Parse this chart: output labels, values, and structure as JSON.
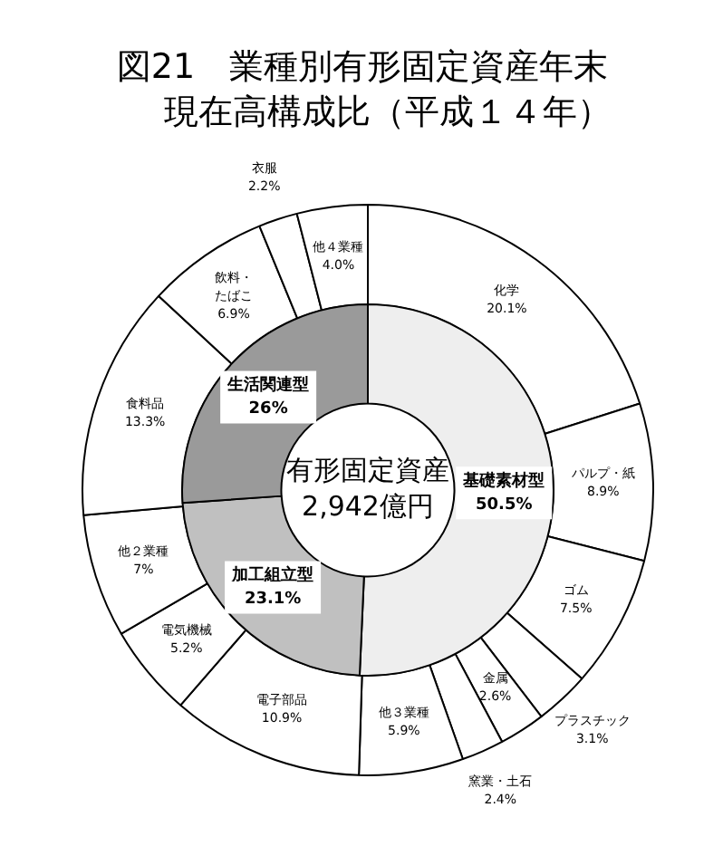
{
  "chart_data": [
    {
      "type": "donut",
      "title": "図21　業種別有形固定資産年末現在高構成比（平成１４年）",
      "legend": false,
      "categories": [
        "化学",
        "パルプ・紙",
        "ゴム",
        "プラスチック",
        "金属",
        "窯業・土石",
        "他３業種",
        "電子部品",
        "電気機械",
        "他２業種",
        "食料品",
        "飲料・たばこ",
        "衣服",
        "他４業種"
      ],
      "values": [
        20.1,
        8.9,
        7.5,
        3.1,
        2.6,
        2.4,
        5.9,
        10.9,
        5.2,
        7,
        13.3,
        6.9,
        2.2,
        4.0
      ],
      "value_labels": [
        "20.1%",
        "8.9%",
        "7.5%",
        "3.1%",
        "2.6%",
        "2.4%",
        "5.9%",
        "10.9%",
        "5.2%",
        "7%",
        "13.3%",
        "6.9%",
        "2.2%",
        "4.0%"
      ],
      "colors": [
        "#ffffff",
        "#ffffff",
        "#ffffff",
        "#ffffff",
        "#ffffff",
        "#ffffff",
        "#ffffff",
        "#ffffff",
        "#ffffff",
        "#ffffff",
        "#ffffff",
        "#ffffff",
        "#ffffff",
        "#ffffff"
      ]
    },
    {
      "type": "donut",
      "legend": false,
      "annotations": [
        "有形固定資産\n2,942億円"
      ],
      "categories": [
        "基礎素材型",
        "加工組立型",
        "生活関連型"
      ],
      "values": [
        50.5,
        23.1,
        26
      ],
      "value_labels": [
        "50.5%",
        "23.1%",
        "26%"
      ],
      "colors": [
        "#eeeeee",
        "#c0c0c0",
        "#9a9a9a"
      ]
    }
  ]
}
